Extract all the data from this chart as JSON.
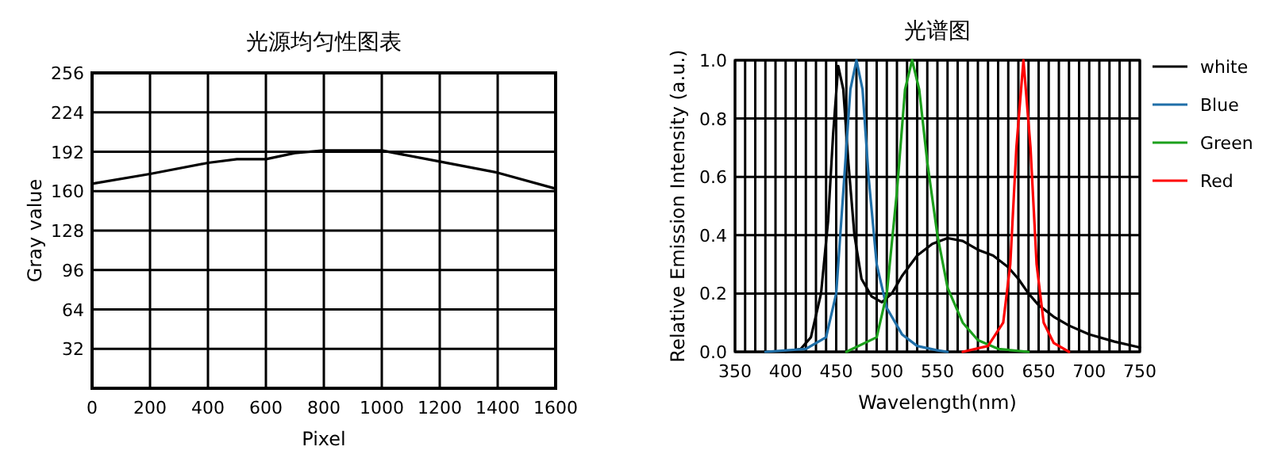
{
  "chart_data": [
    {
      "type": "line",
      "title": "光源均匀性图表",
      "xlabel": "Pixel",
      "ylabel": "Gray value",
      "color": "#000000",
      "x": [
        0,
        200,
        400,
        500,
        600,
        700,
        800,
        1000,
        1200,
        1400,
        1600
      ],
      "values": [
        166,
        174,
        183,
        186,
        186,
        191,
        193,
        193,
        184,
        175,
        162
      ],
      "xlim": [
        0,
        1600
      ],
      "ylim": [
        0,
        256
      ],
      "xticks": [
        0,
        200,
        400,
        600,
        800,
        1000,
        1200,
        1400,
        1600
      ],
      "yticks": [
        32,
        64,
        96,
        128,
        160,
        192,
        224,
        256
      ],
      "grid": true,
      "legend": false
    },
    {
      "type": "line",
      "title": "光谱图",
      "xlabel": "Wavelength(nm)",
      "ylabel": "Relative Emission Intensity (a.u.)",
      "xlim": [
        350,
        750
      ],
      "ylim": [
        0,
        1
      ],
      "xticks": [
        350,
        {
          "value": 360,
          "label": null
        },
        {
          "value": 370,
          "label": null
        },
        {
          "value": 380,
          "label": null
        },
        {
          "value": 390,
          "label": null
        },
        400,
        {
          "value": 410,
          "label": null
        },
        {
          "value": 420,
          "label": null
        },
        {
          "value": 430,
          "label": null
        },
        {
          "value": 440,
          "label": null
        },
        450,
        {
          "value": 460,
          "label": null
        },
        {
          "value": 470,
          "label": null
        },
        {
          "value": 480,
          "label": null
        },
        {
          "value": 490,
          "label": null
        },
        500,
        {
          "value": 510,
          "label": null
        },
        {
          "value": 520,
          "label": null
        },
        {
          "value": 530,
          "label": null
        },
        {
          "value": 540,
          "label": null
        },
        550,
        {
          "value": 560,
          "label": null
        },
        {
          "value": 570,
          "label": null
        },
        {
          "value": 580,
          "label": null
        },
        {
          "value": 590,
          "label": null
        },
        600,
        {
          "value": 610,
          "label": null
        },
        {
          "value": 620,
          "label": null
        },
        {
          "value": 630,
          "label": null
        },
        {
          "value": 640,
          "label": null
        },
        650,
        {
          "value": 660,
          "label": null
        },
        {
          "value": 670,
          "label": null
        },
        {
          "value": 680,
          "label": null
        },
        {
          "value": 690,
          "label": null
        },
        700,
        {
          "value": 710,
          "label": null
        },
        {
          "value": 720,
          "label": null
        },
        {
          "value": 730,
          "label": null
        },
        {
          "value": 740,
          "label": null
        },
        750
      ],
      "yticks": [
        {
          "value": 0,
          "label": "0.0"
        },
        0.2,
        0.4,
        0.6,
        0.8,
        {
          "value": 1,
          "label": "1.0"
        }
      ],
      "grid": true,
      "legend": "top right",
      "series": [
        {
          "name": "white",
          "color": "#000000",
          "x": [
            400,
            415,
            425,
            435,
            442,
            447,
            452,
            457,
            462,
            468,
            475,
            485,
            495,
            505,
            515,
            530,
            545,
            560,
            575,
            590,
            605,
            620,
            630,
            640,
            650,
            665,
            680,
            700,
            725,
            750
          ],
          "values": [
            0,
            0.01,
            0.05,
            0.2,
            0.45,
            0.75,
            0.98,
            0.9,
            0.65,
            0.4,
            0.25,
            0.19,
            0.17,
            0.2,
            0.26,
            0.33,
            0.37,
            0.39,
            0.38,
            0.35,
            0.33,
            0.29,
            0.25,
            0.2,
            0.16,
            0.12,
            0.09,
            0.06,
            0.035,
            0.015
          ]
        },
        {
          "name": "Blue",
          "color": "#1f6fa8",
          "x": [
            380,
            420,
            440,
            450,
            458,
            464,
            470,
            476,
            482,
            490,
            500,
            515,
            530,
            550,
            560
          ],
          "values": [
            0,
            0.01,
            0.05,
            0.2,
            0.6,
            0.9,
            1.0,
            0.9,
            0.6,
            0.3,
            0.15,
            0.06,
            0.02,
            0.005,
            0
          ]
        },
        {
          "name": "Green",
          "color": "#1ca01c",
          "x": [
            460,
            490,
            500,
            510,
            518,
            525,
            532,
            540,
            550,
            560,
            575,
            590,
            610,
            640
          ],
          "values": [
            0,
            0.05,
            0.2,
            0.55,
            0.9,
            1.0,
            0.9,
            0.65,
            0.4,
            0.22,
            0.1,
            0.04,
            0.01,
            0
          ]
        },
        {
          "name": "Red",
          "color": "#ff0000",
          "x": [
            575,
            600,
            615,
            622,
            628,
            635,
            642,
            648,
            655,
            665,
            680
          ],
          "values": [
            0,
            0.02,
            0.1,
            0.3,
            0.7,
            1.0,
            0.7,
            0.3,
            0.1,
            0.03,
            0
          ]
        }
      ]
    }
  ]
}
